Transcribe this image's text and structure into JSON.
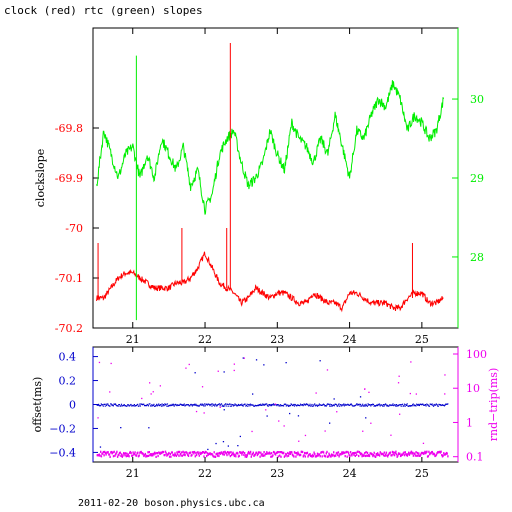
{
  "title": "clock (red) rtc (green) slopes",
  "footer": "2011-02-20  boson.physics.ubc.ca",
  "chart_data": [
    {
      "type": "line",
      "ylabel": "clockslope",
      "xticks": [
        "21",
        "22",
        "23",
        "24",
        "25"
      ],
      "xlim": [
        20.45,
        25.5
      ],
      "y_left": {
        "color": "#ff0000",
        "ticks": [
          "-69.8",
          "-69.9",
          "-70",
          "-70.1",
          "-70.2"
        ],
        "ylim": [
          -70.2,
          -69.6
        ]
      },
      "y_right": {
        "color": "#00ee00",
        "ticks": [
          "30",
          "29",
          "28"
        ],
        "ylim": [
          27.1,
          30.9
        ]
      },
      "series": [
        {
          "color": "#ff0000",
          "axis": "left",
          "x": [
            20.5,
            20.6,
            20.7,
            20.8,
            20.9,
            21.0,
            21.1,
            21.2,
            21.3,
            21.4,
            21.5,
            21.6,
            21.7,
            21.8,
            21.9,
            22.0,
            22.1,
            22.2,
            22.3,
            22.4,
            22.5,
            22.6,
            22.7,
            22.8,
            22.9,
            23.0,
            23.1,
            23.2,
            23.3,
            23.4,
            23.5,
            23.6,
            23.7,
            23.8,
            23.9,
            24.0,
            24.1,
            24.2,
            24.3,
            24.4,
            24.5,
            24.6,
            24.7,
            24.8,
            24.9,
            25.0,
            25.1,
            25.2,
            25.3
          ],
          "values": [
            -70.14,
            -70.14,
            -70.12,
            -70.1,
            -70.09,
            -70.09,
            -70.1,
            -70.11,
            -70.12,
            -70.12,
            -70.12,
            -70.11,
            -70.11,
            -70.1,
            -70.08,
            -70.05,
            -70.08,
            -70.11,
            -70.12,
            -70.13,
            -70.15,
            -70.14,
            -70.12,
            -70.13,
            -70.14,
            -70.13,
            -70.13,
            -70.14,
            -70.15,
            -70.15,
            -70.13,
            -70.14,
            -70.15,
            -70.15,
            -70.16,
            -70.13,
            -70.13,
            -70.14,
            -70.15,
            -70.15,
            -70.15,
            -70.16,
            -70.16,
            -70.14,
            -70.13,
            -70.13,
            -70.15,
            -70.15,
            -70.14
          ]
        },
        {
          "color": "#00ee00",
          "axis": "right",
          "x": [
            20.5,
            20.6,
            20.7,
            20.8,
            20.9,
            21.0,
            21.1,
            21.2,
            21.3,
            21.4,
            21.5,
            21.6,
            21.7,
            21.8,
            21.9,
            22.0,
            22.1,
            22.2,
            22.3,
            22.4,
            22.5,
            22.6,
            22.7,
            22.8,
            22.9,
            23.0,
            23.1,
            23.2,
            23.3,
            23.4,
            23.5,
            23.6,
            23.7,
            23.8,
            23.9,
            24.0,
            24.1,
            24.2,
            24.3,
            24.4,
            24.5,
            24.6,
            24.7,
            24.8,
            24.9,
            25.0,
            25.1,
            25.2,
            25.3
          ],
          "values": [
            28.9,
            29.6,
            29.3,
            29.0,
            29.3,
            29.4,
            29.0,
            29.3,
            29.0,
            29.5,
            29.3,
            29.1,
            29.4,
            28.9,
            29.1,
            28.6,
            28.8,
            29.3,
            29.5,
            29.6,
            29.2,
            28.9,
            29.0,
            29.2,
            29.6,
            29.3,
            29.1,
            29.7,
            29.5,
            29.4,
            29.2,
            29.5,
            29.3,
            29.8,
            29.4,
            29.0,
            29.6,
            29.5,
            29.8,
            30.0,
            29.9,
            30.2,
            30.0,
            29.6,
            29.8,
            29.7,
            29.5,
            29.6,
            30.0
          ]
        }
      ]
    },
    {
      "type": "scatter",
      "ylabel_left": "offset(ms)",
      "ylabel_right": "rnd−trip(ms)",
      "xticks": [
        "21",
        "22",
        "23",
        "24",
        "25"
      ],
      "xlim": [
        20.45,
        25.5
      ],
      "y_left": {
        "color": "#0000cc",
        "ticks": [
          "0.4",
          "0.2",
          "0",
          "−0.2",
          "−0.4"
        ],
        "ylim": [
          -0.48,
          0.48
        ]
      },
      "y_right": {
        "color": "#ee00ee",
        "ticks": [
          "100",
          "10",
          "1",
          "0.1"
        ],
        "scale": "log"
      },
      "series": [
        {
          "color": "#0000cc",
          "axis": "left",
          "x_range": [
            20.5,
            25.35
          ],
          "values_typical": 0
        },
        {
          "color": "#ee00ee",
          "axis": "right",
          "x_range": [
            20.5,
            25.35
          ],
          "values_typical": 0.12
        }
      ]
    }
  ]
}
